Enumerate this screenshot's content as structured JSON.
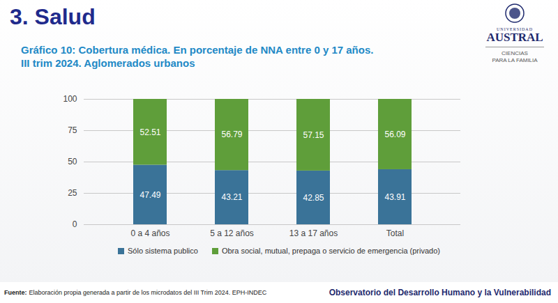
{
  "header": {
    "section": "3. Salud",
    "logo": [
      "UNIVERSIDAD",
      "AUSTRAL",
      "CIENCIAS",
      "PARA LA FAMILIA"
    ]
  },
  "chart_data": {
    "type": "bar",
    "title": "Gráfico 10:  Cobertura médica. En porcentaje de NNA entre 0 y 17 años.",
    "subtitle": "III trim 2024. Aglomerados urbanos",
    "categories": [
      "0 a 4 años",
      "5 a 12 años",
      "13 a 17 años",
      "Total"
    ],
    "series": [
      {
        "name": "Sólo sistema publico",
        "color": "#3a7398",
        "values": [
          47.49,
          43.21,
          42.85,
          43.91
        ]
      },
      {
        "name": "Obra social, mutual, prepaga o servicio de emergencia (privado)",
        "color": "#5f9e3a",
        "values": [
          52.51,
          56.79,
          57.15,
          56.09
        ]
      }
    ],
    "ylim": [
      0,
      100
    ],
    "yticks": [
      0,
      25,
      50,
      75,
      100
    ],
    "grid": true,
    "stacked": true,
    "data_labels": true,
    "legend": "bottom"
  },
  "footer": {
    "source_label": "Fuente:",
    "source": "Elaboración propia generada a partir de los microdatos del III Trim 2024. EPH-INDEC",
    "right": "Observatorio del Desarrollo Humano y la Vulnerabilidad"
  }
}
